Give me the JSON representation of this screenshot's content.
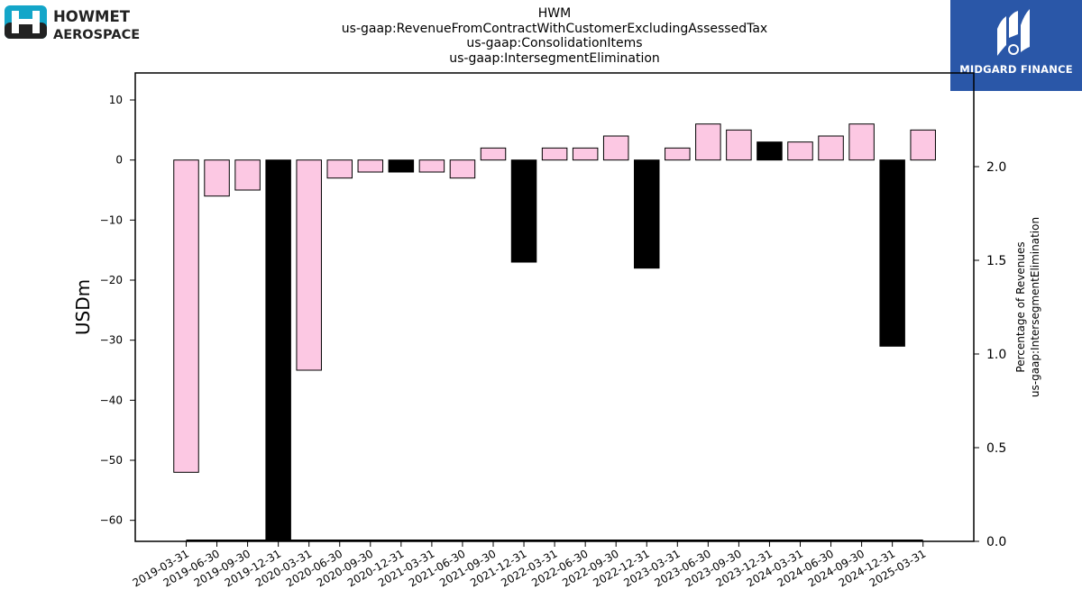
{
  "header": {
    "title_lines": [
      "HWM",
      "us-gaap:RevenueFromContractWithCustomerExcludingAssessedTax",
      "us-gaap:ConsolidationItems",
      "us-gaap:IntersegmentElimination"
    ]
  },
  "logos": {
    "left": {
      "line1": "HOWMET",
      "line2": "AEROSPACE",
      "icon_color": "#14a6c9"
    },
    "right": {
      "text": "MIDGARD FINANCE",
      "bg_color": "#2a57a8"
    }
  },
  "chart_data": {
    "type": "bar",
    "title": "",
    "ylabel": "USDm",
    "y2label_lines": [
      "Percentage of Revenues",
      "us-gaap:IntersegmentElimination"
    ],
    "ylim": [
      -63.5,
      14.5
    ],
    "y2lim": [
      0.0,
      2.5
    ],
    "yticks": [
      10,
      0,
      -10,
      -20,
      -30,
      -40,
      -50,
      -60
    ],
    "y2ticks": [
      "0.0",
      "0.5",
      "1.0",
      "1.5",
      "2.0"
    ],
    "grid": false,
    "categories": [
      "2019-03-31",
      "2019-06-30",
      "2019-09-30",
      "2019-12-31",
      "2020-03-31",
      "2020-06-30",
      "2020-09-30",
      "2020-12-31",
      "2021-03-31",
      "2021-06-30",
      "2021-09-30",
      "2021-12-31",
      "2022-03-31",
      "2022-06-30",
      "2022-09-30",
      "2022-12-31",
      "2023-03-31",
      "2023-06-30",
      "2023-09-30",
      "2023-12-31",
      "2024-03-31",
      "2024-06-30",
      "2024-09-30",
      "2024-12-31",
      "2025-03-31"
    ],
    "values": [
      -52,
      -6,
      -5,
      -64,
      -35,
      -3,
      -2,
      -2,
      -2,
      -3,
      2,
      -17,
      2,
      2,
      4,
      -18,
      2,
      6,
      5,
      3,
      3,
      4,
      6,
      -31,
      5
    ],
    "highlight": [
      false,
      false,
      false,
      true,
      false,
      false,
      false,
      true,
      false,
      false,
      false,
      true,
      false,
      false,
      false,
      true,
      false,
      false,
      false,
      true,
      false,
      false,
      false,
      true,
      false
    ],
    "percentage_values": [
      0.0,
      0.0,
      0.0,
      0.0,
      0.0,
      0.0,
      0.0,
      0.0,
      0.0,
      0.0,
      0.0,
      0.0,
      0.0,
      0.0,
      0.0,
      0.0,
      0.0,
      0.0,
      0.0,
      0.0,
      0.0,
      0.0,
      0.0,
      0.0,
      0.0
    ],
    "colors": {
      "bar_fill": "#fcc8e3",
      "highlight_fill": "#000000",
      "bar_stroke": "#000000"
    }
  }
}
